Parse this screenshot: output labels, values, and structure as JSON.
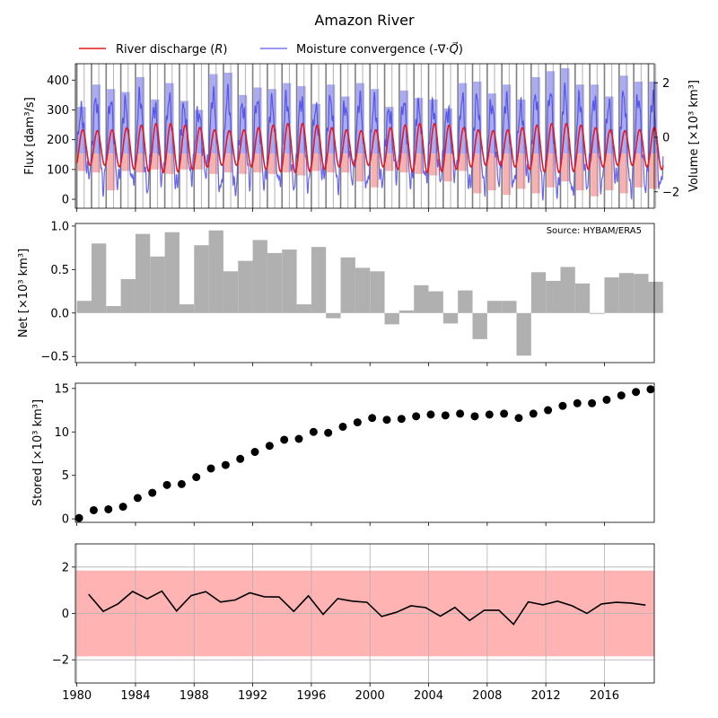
{
  "figure": {
    "title": "Amazon River",
    "source_note": "Source: HYBAM/ERA5",
    "legend": [
      {
        "label": "River discharge (R)",
        "color": "#e41a1c"
      },
      {
        "label": "Moisture convergence (-∇·Q⃗)",
        "color": "#6b6bf0"
      }
    ],
    "colors": {
      "river": "#e41a1c",
      "moisture": "#4040f0",
      "moisture_light": "#b3b3f5",
      "pos_fill": "#9c9cf2",
      "neg_fill": "#f4a5a5",
      "net_bar": "#b0b0b0",
      "band": "#ffb3b3",
      "year_lines": "#808080"
    }
  },
  "chart_data": [
    {
      "type": "line",
      "panel": "flux",
      "ylabel": "Flux [dam³/s]",
      "ylabel_right": "Volume [×10³ km³]",
      "ylim": [
        -30,
        455
      ],
      "yticks": [
        0,
        100,
        200,
        300,
        400
      ],
      "ylim_right": [
        -2.6,
        2.7
      ],
      "yticks_right": [
        -2,
        0,
        2
      ],
      "xlim": [
        1979.9,
        2019.4
      ],
      "grid": false,
      "legend_position": "top-left",
      "series": [
        {
          "name": "River discharge (R)",
          "annual_min": 90,
          "annual_max": 255
        },
        {
          "name": "Moisture convergence (-∇·Q⃗)",
          "annual_min": 0,
          "annual_max": 400
        }
      ],
      "annual_bar_tops": [
        310,
        385,
        370,
        360,
        410,
        335,
        390,
        330,
        300,
        420,
        425,
        350,
        375,
        370,
        390,
        380,
        320,
        385,
        345,
        390,
        370,
        310,
        365,
        340,
        335,
        305,
        390,
        395,
        355,
        385,
        335,
        410,
        430,
        440,
        385,
        385,
        345,
        415,
        395,
        395
      ],
      "annual_bar_bottoms": [
        95,
        90,
        30,
        95,
        90,
        100,
        85,
        100,
        100,
        85,
        90,
        85,
        90,
        85,
        90,
        80,
        95,
        90,
        90,
        60,
        40,
        95,
        90,
        85,
        80,
        60,
        95,
        20,
        30,
        15,
        35,
        20,
        40,
        60,
        30,
        10,
        30,
        20,
        40,
        35
      ]
    },
    {
      "type": "bar",
      "panel": "net",
      "ylabel": "Net [×10³ km³]",
      "ylim": [
        -0.57,
        1.03
      ],
      "yticks": [
        -0.5,
        0.0,
        0.5,
        1.0
      ],
      "grid": false,
      "x": [
        1980,
        1981,
        1982,
        1983,
        1984,
        1985,
        1986,
        1987,
        1988,
        1989,
        1990,
        1991,
        1992,
        1993,
        1994,
        1995,
        1996,
        1997,
        1998,
        1999,
        2000,
        2001,
        2002,
        2003,
        2004,
        2005,
        2006,
        2007,
        2008,
        2009,
        2010,
        2011,
        2012,
        2013,
        2014,
        2015,
        2016,
        2017,
        2018,
        2019
      ],
      "values": [
        0.14,
        0.8,
        0.08,
        0.39,
        0.91,
        0.65,
        0.93,
        0.1,
        0.78,
        0.95,
        0.48,
        0.6,
        0.84,
        0.69,
        0.73,
        0.1,
        0.76,
        -0.06,
        0.64,
        0.52,
        0.48,
        -0.13,
        0.03,
        0.32,
        0.25,
        -0.12,
        0.26,
        -0.3,
        0.14,
        0.14,
        -0.49,
        0.47,
        0.37,
        0.53,
        0.34,
        -0.01,
        0.41,
        0.46,
        0.45,
        0.36
      ]
    },
    {
      "type": "scatter",
      "panel": "stored",
      "ylabel": "Stored [×10³ km³]",
      "ylim": [
        -0.4,
        15.6
      ],
      "yticks": [
        0,
        5,
        10,
        15
      ],
      "grid": false,
      "x": [
        1980,
        1981,
        1982,
        1983,
        1984,
        1985,
        1986,
        1987,
        1988,
        1989,
        1990,
        1991,
        1992,
        1993,
        1994,
        1995,
        1996,
        1997,
        1998,
        1999,
        2000,
        2001,
        2002,
        2003,
        2004,
        2005,
        2006,
        2007,
        2008,
        2009,
        2010,
        2011,
        2012,
        2013,
        2014,
        2015,
        2016,
        2017,
        2018,
        2019
      ],
      "values": [
        0.1,
        1.0,
        1.1,
        1.4,
        2.4,
        3.0,
        3.9,
        4.0,
        4.8,
        5.8,
        6.2,
        6.9,
        7.7,
        8.4,
        9.1,
        9.2,
        10.0,
        9.9,
        10.6,
        11.1,
        11.6,
        11.4,
        11.5,
        11.8,
        12.0,
        11.9,
        12.1,
        11.8,
        12.0,
        12.1,
        11.6,
        12.1,
        12.5,
        13.0,
        13.3,
        13.3,
        13.7,
        14.2,
        14.6,
        14.9
      ]
    },
    {
      "type": "line",
      "panel": "anomaly",
      "ylabel": "",
      "ylim": [
        -3,
        3
      ],
      "yticks": [
        -2,
        0,
        2
      ],
      "band": [
        -1.85,
        1.85
      ],
      "grid": true,
      "x": [
        1980.8,
        1981.8,
        1982.8,
        1983.8,
        1984.8,
        1985.8,
        1986.8,
        1987.8,
        1988.8,
        1989.8,
        1990.8,
        1991.8,
        1992.8,
        1993.8,
        1994.8,
        1995.8,
        1996.8,
        1997.8,
        1998.8,
        1999.8,
        2000.8,
        2001.8,
        2002.8,
        2003.8,
        2004.8,
        2005.8,
        2006.8,
        2007.8,
        2008.8,
        2009.8,
        2010.8,
        2011.8,
        2012.8,
        2013.8,
        2014.8,
        2015.8,
        2016.8,
        2017.8,
        2018.8
      ],
      "values": [
        0.83,
        0.09,
        0.41,
        0.95,
        0.63,
        0.96,
        0.11,
        0.77,
        0.94,
        0.49,
        0.58,
        0.89,
        0.72,
        0.71,
        0.09,
        0.76,
        -0.04,
        0.64,
        0.53,
        0.48,
        -0.13,
        0.05,
        0.33,
        0.25,
        -0.12,
        0.26,
        -0.3,
        0.14,
        0.14,
        -0.47,
        0.5,
        0.37,
        0.53,
        0.33,
        0.0,
        0.41,
        0.48,
        0.45,
        0.36
      ],
      "xlim": [
        1979.9,
        2019.4
      ],
      "xticks": [
        1980,
        1984,
        1988,
        1992,
        1996,
        2000,
        2004,
        2008,
        2012,
        2016
      ]
    }
  ]
}
